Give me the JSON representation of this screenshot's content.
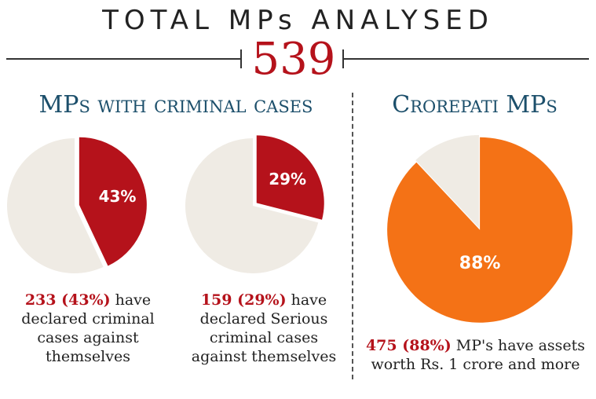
{
  "header": {
    "title": "TOTAL MPs ANALYSED",
    "total": "539"
  },
  "sections": {
    "criminal": {
      "heading": "MPs with criminal cases"
    },
    "crorepati": {
      "heading": "Crorepati MPs"
    }
  },
  "captions": [
    {
      "highlight": "233 (43%)",
      "rest_line1": " have",
      "lines": [
        "declared criminal",
        "cases against",
        "themselves"
      ]
    },
    {
      "highlight": "159 (29%)",
      "rest_line1": " have",
      "lines": [
        "declared Serious",
        "criminal cases",
        "against themselves"
      ]
    },
    {
      "highlight": "475 (88%)",
      "rest_line1": " MP's have assets",
      "lines": [
        "worth Rs. 1 crore and more"
      ]
    }
  ],
  "colors": {
    "criminal": "#b5121b",
    "crorepati": "#f47216",
    "remainder": "#efebe4",
    "heading": "#1c4f6b"
  },
  "chart_data": [
    {
      "type": "pie",
      "title": "",
      "slices": [
        {
          "label": "43%",
          "value": 43,
          "color": "#b5121b",
          "exploded": true
        },
        {
          "label": "",
          "value": 57,
          "color": "#efebe4"
        }
      ]
    },
    {
      "type": "pie",
      "title": "",
      "slices": [
        {
          "label": "29%",
          "value": 29,
          "color": "#b5121b",
          "exploded": true
        },
        {
          "label": "",
          "value": 71,
          "color": "#efebe4"
        }
      ]
    },
    {
      "type": "pie",
      "title": "",
      "slices": [
        {
          "label": "88%",
          "value": 88,
          "color": "#f47216",
          "exploded": true
        },
        {
          "label": "",
          "value": 12,
          "color": "#efebe4"
        }
      ]
    }
  ]
}
